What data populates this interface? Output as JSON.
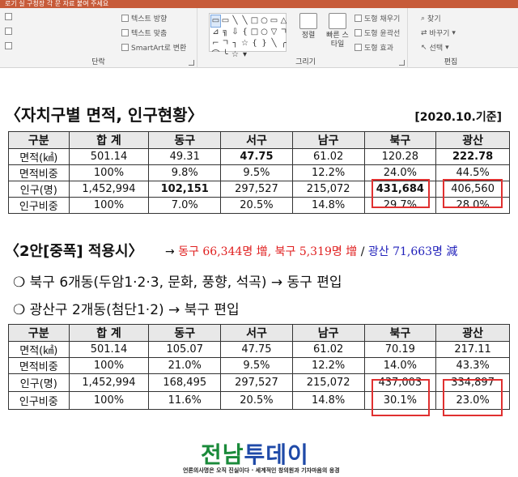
{
  "window": {
    "title_fragment": "로기  실 구청장 각 문 자료 붙여 주세요"
  },
  "ribbon": {
    "groups": {
      "paragraph": {
        "label": "단락",
        "text_direction": "텍스트 방향",
        "text_align": "텍스트 맞춤",
        "smartart": "SmartArt로 변환"
      },
      "drawing": {
        "label": "그리기",
        "arrange": "정렬",
        "quick_styles": "빠른 스타일",
        "shape_fill": "도형 채우기",
        "shape_outline": "도형 윤곽선",
        "shape_effects": "도형 효과"
      },
      "editing": {
        "label": "편집",
        "find": "찾기",
        "replace": "바꾸기",
        "select": "선택"
      }
    },
    "shape_glyphs": [
      "▭",
      "▭",
      "╲",
      "╲",
      "□",
      "○",
      "▭",
      "△",
      "⊿",
      "╗",
      "⇩",
      "{",
      "□",
      "○",
      "▽",
      "ㄱ",
      "⌐",
      "ㄱ",
      "┐",
      "☆",
      "{",
      "}",
      "╲",
      "╭",
      "⌒",
      "╰",
      "☆",
      "▾"
    ]
  },
  "slide": {
    "table1_title": "〈자치구별 면적, 인구현황〉",
    "date_note": "[2020.10.기준]",
    "table1": {
      "headers": [
        "구분",
        "합 계",
        "동구",
        "서구",
        "남구",
        "북구",
        "광산"
      ],
      "rows": [
        [
          "면적(㎢)",
          "501.14",
          "49.31",
          "47.75",
          "61.02",
          "120.28",
          "222.78"
        ],
        [
          "면적비중",
          "100%",
          "9.8%",
          "9.5%",
          "12.2%",
          "24.0%",
          "44.5%"
        ],
        [
          "인구(명)",
          "1,452,994",
          "102,151",
          "297,527",
          "215,072",
          "431,684",
          "406,560"
        ],
        [
          "인구비중",
          "100%",
          "7.0%",
          "20.5%",
          "14.8%",
          "29.7%",
          "28.0%"
        ]
      ]
    },
    "plan_title": "〈2안[중폭] 적용시〉",
    "plan_arrow": "→",
    "plan_note_red": "동구 66,344명 增, 북구 5,319명 增",
    "plan_note_sep": "/",
    "plan_note_blue": "광산 71,663명 減",
    "bullets": [
      "❍ 북구 6개동(두암1·2·3, 문화, 풍향, 석곡) → 동구 편입",
      "❍ 광산구 2개동(첨단1·2) → 북구 편입"
    ],
    "table2": {
      "headers": [
        "구분",
        "합 계",
        "동구",
        "서구",
        "남구",
        "북구",
        "광산"
      ],
      "rows": [
        [
          "면적(㎢)",
          "501.14",
          "105.07",
          "47.75",
          "61.02",
          "70.19",
          "217.11"
        ],
        [
          "면적비중",
          "100%",
          "21.0%",
          "9.5%",
          "12.2%",
          "14.0%",
          "43.3%"
        ],
        [
          "인구(명)",
          "1,452,994",
          "168,495",
          "297,527",
          "215,072",
          "437,003",
          "334,897"
        ],
        [
          "인구비중",
          "100%",
          "11.6%",
          "20.5%",
          "14.8%",
          "30.1%",
          "23.0%"
        ]
      ]
    },
    "logo": {
      "part1": "전남",
      "part2": "투데이"
    },
    "slogan": "언론의사명은 오직 진실이다 · 세계적인 창의원과 기자마음의 응경"
  }
}
